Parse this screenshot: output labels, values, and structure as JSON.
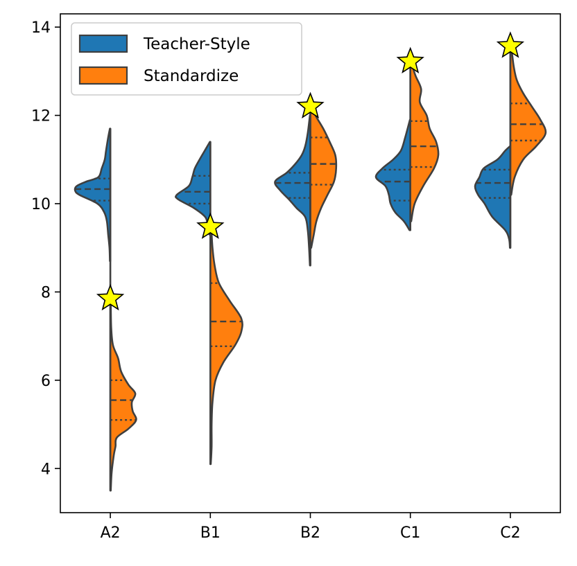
{
  "chart_data": {
    "type": "violin",
    "title": "",
    "xlabel": "",
    "ylabel": "",
    "categories": [
      "A2",
      "B1",
      "B2",
      "C1",
      "C2"
    ],
    "ylim": [
      3.0,
      14.3
    ],
    "yticks": [
      4,
      6,
      8,
      10,
      12,
      14
    ],
    "split": true,
    "inner": "quartile",
    "legend": {
      "placement": "top-left"
    },
    "series": [
      {
        "name": "Teacher-Style",
        "side": "left",
        "color": "#1f77b4",
        "violins": [
          {
            "category": "A2",
            "range": [
              8.7,
              11.7
            ],
            "quartiles": [
              10.07,
              10.33,
              10.57
            ],
            "profile": [
              [
                8.7,
                0.01
              ],
              [
                9.0,
                0.02
              ],
              [
                9.3,
                0.05
              ],
              [
                9.6,
                0.08
              ],
              [
                9.8,
                0.14
              ],
              [
                10.0,
                0.3
              ],
              [
                10.2,
                0.72
              ],
              [
                10.3,
                0.82
              ],
              [
                10.4,
                0.78
              ],
              [
                10.5,
                0.56
              ],
              [
                10.6,
                0.28
              ],
              [
                10.8,
                0.2
              ],
              [
                11.0,
                0.13
              ],
              [
                11.2,
                0.1
              ],
              [
                11.5,
                0.05
              ],
              [
                11.7,
                0.01
              ]
            ]
          },
          {
            "category": "B1",
            "range": [
              9.3,
              11.4
            ],
            "quartiles": [
              10.0,
              10.27,
              10.63
            ],
            "profile": [
              [
                9.3,
                0.02
              ],
              [
                9.5,
                0.06
              ],
              [
                9.7,
                0.12
              ],
              [
                9.9,
                0.38
              ],
              [
                10.1,
                0.75
              ],
              [
                10.2,
                0.78
              ],
              [
                10.4,
                0.5
              ],
              [
                10.6,
                0.42
              ],
              [
                10.8,
                0.36
              ],
              [
                11.0,
                0.25
              ],
              [
                11.2,
                0.13
              ],
              [
                11.4,
                0.01
              ]
            ]
          },
          {
            "category": "B2",
            "range": [
              8.6,
              12.0
            ],
            "quartiles": [
              10.13,
              10.47,
              10.7
            ],
            "profile": [
              [
                8.6,
                0.01
              ],
              [
                9.0,
                0.03
              ],
              [
                9.4,
                0.06
              ],
              [
                9.7,
                0.12
              ],
              [
                9.9,
                0.32
              ],
              [
                10.1,
                0.5
              ],
              [
                10.3,
                0.7
              ],
              [
                10.5,
                0.82
              ],
              [
                10.7,
                0.55
              ],
              [
                10.9,
                0.35
              ],
              [
                11.1,
                0.2
              ],
              [
                11.3,
                0.12
              ],
              [
                11.6,
                0.06
              ],
              [
                12.0,
                0.01
              ]
            ]
          },
          {
            "category": "C1",
            "range": [
              9.4,
              11.9
            ],
            "quartiles": [
              10.07,
              10.5,
              10.77
            ],
            "profile": [
              [
                9.4,
                0.02
              ],
              [
                9.6,
                0.15
              ],
              [
                9.8,
                0.35
              ],
              [
                10.0,
                0.46
              ],
              [
                10.2,
                0.5
              ],
              [
                10.4,
                0.58
              ],
              [
                10.6,
                0.8
              ],
              [
                10.8,
                0.65
              ],
              [
                11.0,
                0.4
              ],
              [
                11.2,
                0.22
              ],
              [
                11.5,
                0.12
              ],
              [
                11.9,
                0.01
              ]
            ]
          },
          {
            "category": "C2",
            "range": [
              9.0,
              11.3
            ],
            "quartiles": [
              10.13,
              10.47,
              10.77
            ],
            "profile": [
              [
                9.0,
                0.01
              ],
              [
                9.2,
                0.03
              ],
              [
                9.4,
                0.12
              ],
              [
                9.7,
                0.42
              ],
              [
                10.0,
                0.6
              ],
              [
                10.2,
                0.75
              ],
              [
                10.4,
                0.82
              ],
              [
                10.6,
                0.72
              ],
              [
                10.8,
                0.62
              ],
              [
                11.0,
                0.3
              ],
              [
                11.2,
                0.12
              ],
              [
                11.3,
                0.01
              ]
            ]
          }
        ]
      },
      {
        "name": "Standardize",
        "side": "right",
        "color": "#ff7f0e",
        "violins": [
          {
            "category": "A2",
            "range": [
              3.5,
              7.8
            ],
            "quartiles": [
              5.1,
              5.55,
              6.0
            ],
            "profile": [
              [
                3.5,
                0.01
              ],
              [
                3.9,
                0.03
              ],
              [
                4.3,
                0.08
              ],
              [
                4.5,
                0.12
              ],
              [
                4.7,
                0.15
              ],
              [
                4.9,
                0.42
              ],
              [
                5.1,
                0.6
              ],
              [
                5.3,
                0.52
              ],
              [
                5.5,
                0.5
              ],
              [
                5.7,
                0.58
              ],
              [
                5.9,
                0.42
              ],
              [
                6.2,
                0.25
              ],
              [
                6.5,
                0.18
              ],
              [
                6.8,
                0.06
              ],
              [
                7.2,
                0.02
              ],
              [
                7.8,
                0.01
              ]
            ]
          },
          {
            "category": "B1",
            "range": [
              4.1,
              9.5
            ],
            "quartiles": [
              6.77,
              7.33,
              8.2
            ],
            "profile": [
              [
                4.1,
                0.01
              ],
              [
                4.5,
                0.03
              ],
              [
                5.0,
                0.03
              ],
              [
                5.5,
                0.05
              ],
              [
                6.0,
                0.12
              ],
              [
                6.4,
                0.3
              ],
              [
                6.8,
                0.58
              ],
              [
                7.1,
                0.72
              ],
              [
                7.4,
                0.72
              ],
              [
                7.8,
                0.45
              ],
              [
                8.2,
                0.2
              ],
              [
                8.6,
                0.1
              ],
              [
                9.0,
                0.05
              ],
              [
                9.5,
                0.02
              ]
            ]
          },
          {
            "category": "B2",
            "range": [
              9.0,
              12.2
            ],
            "quartiles": [
              10.43,
              10.9,
              11.5
            ],
            "profile": [
              [
                9.0,
                0.02
              ],
              [
                9.3,
                0.08
              ],
              [
                9.6,
                0.14
              ],
              [
                9.9,
                0.25
              ],
              [
                10.2,
                0.4
              ],
              [
                10.5,
                0.55
              ],
              [
                10.8,
                0.6
              ],
              [
                11.1,
                0.58
              ],
              [
                11.4,
                0.45
              ],
              [
                11.7,
                0.3
              ],
              [
                12.0,
                0.12
              ],
              [
                12.2,
                0.05
              ]
            ]
          },
          {
            "category": "C1",
            "range": [
              9.6,
              13.2
            ],
            "quartiles": [
              10.83,
              11.3,
              11.87
            ],
            "profile": [
              [
                9.6,
                0.02
              ],
              [
                10.0,
                0.1
              ],
              [
                10.4,
                0.3
              ],
              [
                10.8,
                0.55
              ],
              [
                11.1,
                0.65
              ],
              [
                11.4,
                0.6
              ],
              [
                11.7,
                0.45
              ],
              [
                12.0,
                0.38
              ],
              [
                12.3,
                0.22
              ],
              [
                12.6,
                0.25
              ],
              [
                12.9,
                0.12
              ],
              [
                13.2,
                0.02
              ]
            ]
          },
          {
            "category": "C2",
            "range": [
              10.2,
              13.6
            ],
            "quartiles": [
              11.43,
              11.8,
              12.27
            ],
            "profile": [
              [
                10.2,
                0.02
              ],
              [
                10.6,
                0.1
              ],
              [
                11.0,
                0.3
              ],
              [
                11.3,
                0.6
              ],
              [
                11.6,
                0.82
              ],
              [
                11.9,
                0.7
              ],
              [
                12.2,
                0.5
              ],
              [
                12.5,
                0.3
              ],
              [
                12.8,
                0.15
              ],
              [
                13.1,
                0.08
              ],
              [
                13.4,
                0.04
              ],
              [
                13.6,
                0.01
              ]
            ]
          }
        ]
      }
    ],
    "markers": {
      "shape": "star",
      "color": "#ffff00",
      "points": [
        {
          "category": "A2",
          "y": 7.85
        },
        {
          "category": "B1",
          "y": 9.47
        },
        {
          "category": "B2",
          "y": 12.2
        },
        {
          "category": "C1",
          "y": 13.22
        },
        {
          "category": "C2",
          "y": 13.57
        }
      ]
    }
  }
}
